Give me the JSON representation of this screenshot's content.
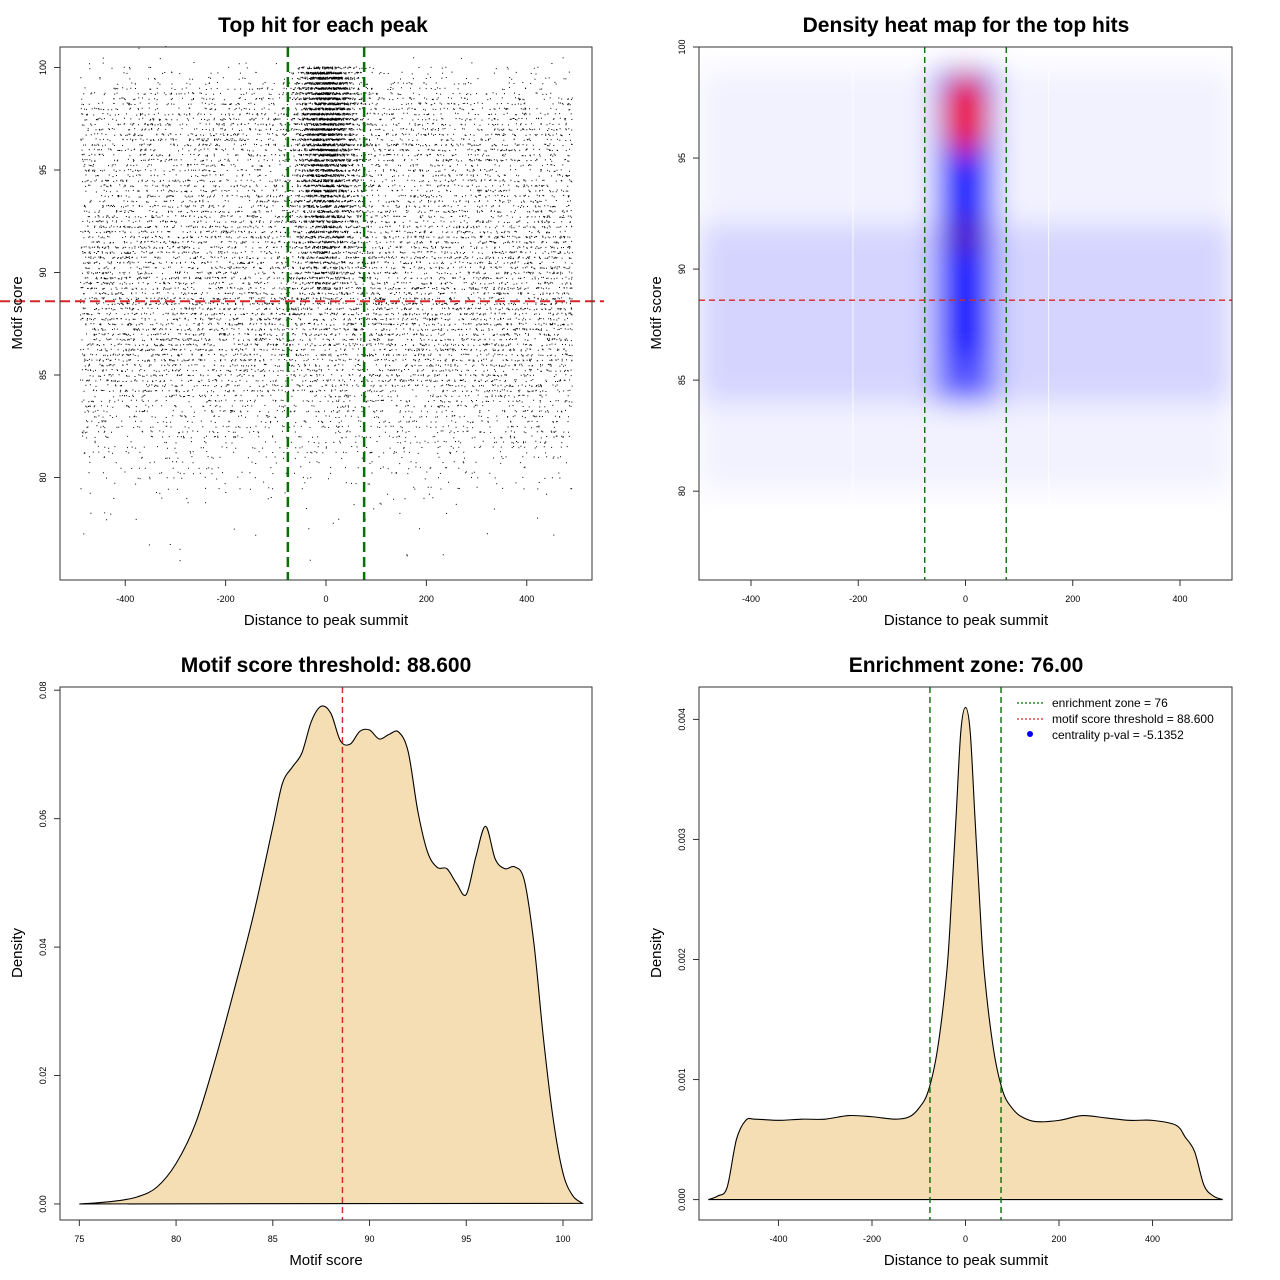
{
  "colors": {
    "zone_line": "#0a6e0a",
    "threshold_line": "#d62728",
    "density_fill": "#f5deb3",
    "density_stroke": "#000000",
    "point": "#000000",
    "heat_low": "#ffffff",
    "heat_mid": "#0000ff",
    "heat_high": "#ff0000",
    "legend_point": "#0000ff"
  },
  "chart_data": [
    {
      "type": "scatter",
      "title": "Top hit for each peak",
      "xlabel": "Distance to peak summit",
      "ylabel": "Motif score",
      "xlim": [
        -530,
        530
      ],
      "ylim": [
        75,
        101
      ],
      "xticks": [
        -400,
        -200,
        0,
        200,
        400
      ],
      "yticks": [
        80,
        85,
        90,
        95,
        100
      ],
      "x_range": [
        -490,
        490
      ],
      "point_count": 16000,
      "central_cluster": {
        "center": 0,
        "sd": 30,
        "score_range": [
          88,
          100
        ]
      },
      "lines": {
        "vertical": [
          -76,
          76
        ],
        "horizontal": 88.6
      }
    },
    {
      "type": "heatmap",
      "title": "Density heat map for the top hits",
      "xlabel": "Distance to peak summit",
      "ylabel": "Motif score",
      "xlim": [
        -497,
        497
      ],
      "ylim": [
        76,
        100
      ],
      "xticks": [
        -400,
        -200,
        0,
        200,
        400
      ],
      "yticks": [
        80,
        85,
        90,
        95,
        100
      ],
      "hotspots": [
        {
          "x": 0,
          "y": 97,
          "intensity": "highest"
        },
        {
          "x": 0,
          "y": 91.5,
          "intensity": "high"
        }
      ],
      "lines": {
        "vertical": [
          -76,
          76
        ],
        "horizontal": 88.6
      }
    },
    {
      "type": "area",
      "title": "Motif score threshold: 88.600",
      "xlabel": "Motif score",
      "ylabel": "Density",
      "xlim": [
        74,
        101.5
      ],
      "ylim": [
        -0.0025,
        0.0805
      ],
      "xticks": [
        75,
        80,
        85,
        90,
        95,
        100
      ],
      "yticks": [
        0.0,
        0.02,
        0.04,
        0.06,
        0.08
      ],
      "ytick_labels": [
        "0.00",
        "0.02",
        "0.04",
        "0.06",
        "0.08"
      ],
      "x": [
        75,
        76,
        77,
        78,
        79,
        80,
        81,
        82,
        83,
        84,
        85,
        85.5,
        86,
        86.5,
        87,
        87.5,
        88,
        88.5,
        89,
        89.5,
        90,
        90.5,
        91,
        91.5,
        92,
        92.5,
        93,
        93.5,
        94,
        94.5,
        95,
        95.5,
        96,
        96.5,
        97,
        97.5,
        98,
        98.5,
        99,
        99.5,
        100,
        100.5,
        101
      ],
      "y": [
        0.0,
        0.0002,
        0.0005,
        0.0011,
        0.0026,
        0.0063,
        0.0125,
        0.0222,
        0.0333,
        0.045,
        0.0587,
        0.0655,
        0.068,
        0.0702,
        0.0752,
        0.0775,
        0.0764,
        0.0721,
        0.0716,
        0.0736,
        0.0738,
        0.0724,
        0.0731,
        0.0735,
        0.0704,
        0.0611,
        0.0548,
        0.0524,
        0.0522,
        0.0499,
        0.0482,
        0.0541,
        0.0588,
        0.0537,
        0.0522,
        0.0525,
        0.0504,
        0.0405,
        0.0255,
        0.0131,
        0.0048,
        0.0013,
        0.0001
      ],
      "threshold": 88.6
    },
    {
      "type": "area",
      "title": "Enrichment zone: 76.00",
      "xlabel": "Distance to peak summit",
      "ylabel": "Density",
      "xlim": [
        -570,
        570
      ],
      "ylim": [
        -0.00017,
        0.00427
      ],
      "xticks": [
        -400,
        -200,
        0,
        200,
        400
      ],
      "yticks": [
        0.0,
        0.001,
        0.002,
        0.003,
        0.004
      ],
      "ytick_labels": [
        "0.000",
        "0.001",
        "0.002",
        "0.003",
        "0.004"
      ],
      "x": [
        -550,
        -530,
        -510,
        -490,
        -470,
        -450,
        -400,
        -350,
        -300,
        -250,
        -200,
        -150,
        -120,
        -100,
        -80,
        -60,
        -40,
        -30,
        -20,
        -10,
        0,
        10,
        20,
        30,
        40,
        60,
        80,
        100,
        120,
        150,
        200,
        250,
        300,
        350,
        400,
        450,
        470,
        490,
        510,
        530,
        550
      ],
      "y": [
        0.0,
        3e-05,
        0.0001,
        0.0005,
        0.00066,
        0.00067,
        0.00066,
        0.00067,
        0.00067,
        0.0007,
        0.00069,
        0.00067,
        0.00069,
        0.00076,
        0.0009,
        0.00125,
        0.0019,
        0.0025,
        0.0032,
        0.0039,
        0.0041,
        0.0039,
        0.0032,
        0.0025,
        0.0019,
        0.00125,
        0.0009,
        0.00076,
        0.00069,
        0.00065,
        0.00066,
        0.0007,
        0.00068,
        0.00066,
        0.00066,
        0.00062,
        0.00052,
        0.0004,
        0.00012,
        3e-05,
        0.0
      ],
      "enrichment_zone": 76,
      "legend": [
        {
          "label": "enrichment zone = 76",
          "style": "dotted-green"
        },
        {
          "label": "motif score threshold = 88.600",
          "style": "dotted-red"
        },
        {
          "label": "centrality p-val = -5.1352",
          "style": "blue-point"
        }
      ]
    }
  ]
}
